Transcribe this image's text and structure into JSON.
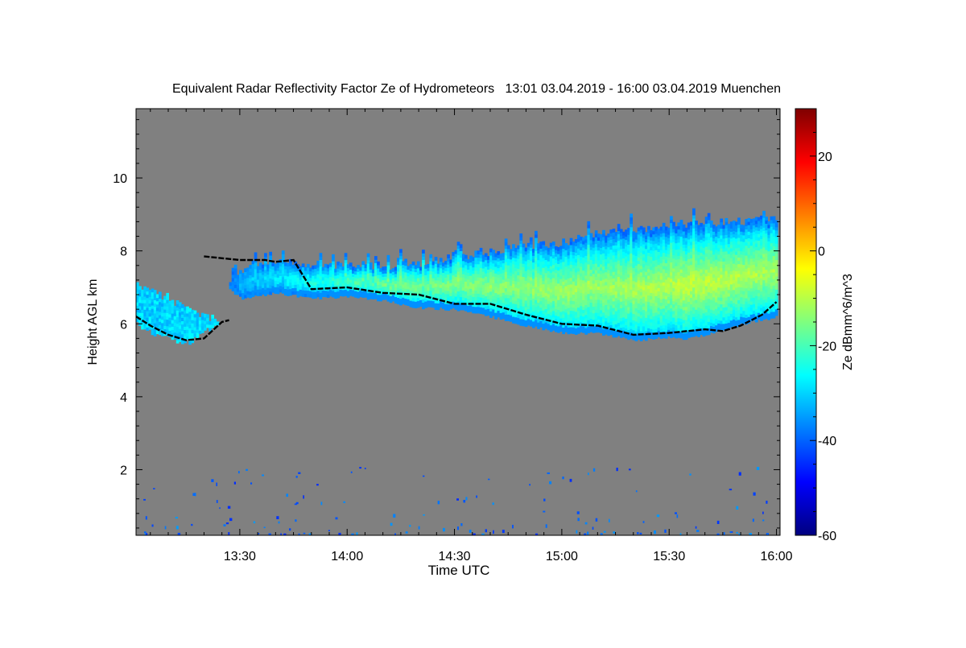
{
  "chart_data": {
    "type": "heatmap",
    "title": "Equivalent Radar Reflectivity Factor Ze of Hydrometeors   13:01 03.04.2019 - 16:00 03.04.2019 Muenchen",
    "xlabel": "Time UTC",
    "ylabel": "Height AGL km",
    "x_ticks": [
      "13:30",
      "14:00",
      "14:30",
      "15:00",
      "15:30",
      "16:00"
    ],
    "x_tick_minutes": [
      30,
      60,
      90,
      120,
      150,
      180
    ],
    "xlim_minutes": [
      1,
      181
    ],
    "y_ticks": [
      2,
      4,
      6,
      8,
      10
    ],
    "ylim": [
      0.2,
      11.9
    ],
    "background_color": "#808080",
    "colorbar": {
      "label": "Ze dBmm^6/m^3",
      "range": [
        -60,
        30
      ],
      "ticks": [
        -60,
        -40,
        -20,
        0,
        20
      ],
      "colormap": [
        "#00007f",
        "#0000ff",
        "#007fff",
        "#00ffff",
        "#7fff7f",
        "#ffff00",
        "#ff7f00",
        "#ff0000",
        "#7f0000"
      ]
    },
    "main_cloud": {
      "t": [
        27,
        30,
        40,
        50,
        60,
        70,
        80,
        90,
        100,
        110,
        120,
        130,
        140,
        150,
        155,
        160,
        170,
        180
      ],
      "base_km": [
        6.95,
        6.7,
        6.85,
        6.7,
        6.75,
        6.65,
        6.45,
        6.4,
        6.2,
        5.95,
        5.75,
        5.75,
        5.55,
        5.65,
        5.6,
        5.7,
        6.0,
        6.2
      ],
      "top_km": [
        7.05,
        7.45,
        7.65,
        7.55,
        7.6,
        7.55,
        7.6,
        7.8,
        7.95,
        8.1,
        8.2,
        8.4,
        8.55,
        8.65,
        8.7,
        8.75,
        8.8,
        8.85
      ],
      "core_dbz": [
        -40,
        -32,
        -28,
        -24,
        -20,
        -16,
        -15,
        -14,
        -13,
        -13,
        -12,
        -12,
        -11,
        -10,
        -8,
        -9,
        -10,
        -11
      ]
    },
    "detached_cloud": {
      "t": [
        1,
        4,
        8,
        12,
        16,
        20,
        24
      ],
      "base_km": [
        6.0,
        5.8,
        5.65,
        5.55,
        5.5,
        5.8,
        6.0
      ],
      "top_km": [
        7.05,
        6.95,
        6.75,
        6.55,
        6.35,
        6.15,
        6.1
      ]
    },
    "cloud_base_line": {
      "t": [
        1,
        5,
        10,
        15,
        20,
        25,
        27
      ],
      "km": [
        6.2,
        5.95,
        5.7,
        5.55,
        5.6,
        6.05,
        6.1
      ]
    },
    "cloud_base_line_2": {
      "t": [
        20,
        30,
        37,
        40,
        45,
        50,
        60,
        70,
        80,
        90,
        100,
        110,
        120,
        130,
        140,
        150,
        160,
        165,
        170,
        172,
        176,
        180
      ],
      "km": [
        7.85,
        7.75,
        7.75,
        7.7,
        7.75,
        6.95,
        7.0,
        6.85,
        6.8,
        6.55,
        6.55,
        6.25,
        6.0,
        5.95,
        5.7,
        5.75,
        5.85,
        5.8,
        5.95,
        6.05,
        6.25,
        6.6
      ]
    }
  }
}
